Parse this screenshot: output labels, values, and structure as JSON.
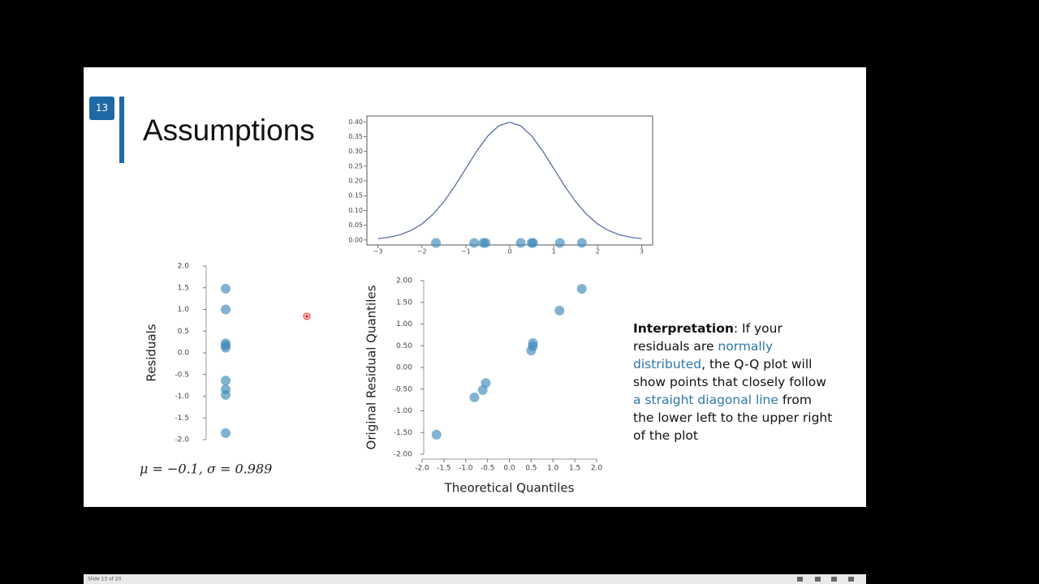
{
  "slide_number": "13",
  "title": "Assumptions",
  "status": "Slide 13 of 20",
  "annotation": "μ = −0.1, σ = 0.989",
  "interpretation": [
    {
      "text": "Interpretation",
      "style": "bold"
    },
    {
      "text": ": If your residuals are ",
      "style": "plain"
    },
    {
      "text": "normally distributed",
      "style": "accent"
    },
    {
      "text": ", the Q-Q plot will show points that closely follow ",
      "style": "plain"
    },
    {
      "text": "a straight diagonal line",
      "style": "accent"
    },
    {
      "text": " from the lower left to the upper right of the plot",
      "style": "plain"
    }
  ],
  "chart_data": [
    {
      "type": "line",
      "xlim": [
        -3.25,
        3.25
      ],
      "ylim": [
        -0.017,
        0.42
      ],
      "xticks": [
        {
          "value": -3,
          "label": "−3"
        },
        {
          "value": -2,
          "label": "−2"
        },
        {
          "value": -1,
          "label": "−1"
        },
        0,
        1,
        2,
        3
      ],
      "yticks": [
        {
          "value": 0,
          "label": "0.00"
        },
        {
          "value": 0.05,
          "label": "0.05"
        },
        {
          "value": 0.1,
          "label": "0.10"
        },
        {
          "value": 0.15,
          "label": "0.15"
        },
        {
          "value": 0.2,
          "label": "0.20"
        },
        {
          "value": 0.25,
          "label": "0.25"
        },
        {
          "value": 0.3,
          "label": "0.30"
        },
        {
          "value": 0.35,
          "label": "0.35"
        },
        {
          "value": 0.4,
          "label": "0.40"
        }
      ],
      "series": [
        {
          "type": "line",
          "color": "#5b6fa3",
          "x": [
            -3,
            -2.75,
            -2.5,
            -2.25,
            -2,
            -1.75,
            -1.5,
            -1.25,
            -1,
            -0.75,
            -0.5,
            -0.25,
            0,
            0.25,
            0.5,
            0.75,
            1,
            1.25,
            1.5,
            1.75,
            2,
            2.25,
            2.5,
            2.75,
            3
          ],
          "values": [
            0.0044,
            0.0091,
            0.0175,
            0.0317,
            0.054,
            0.0863,
            0.1295,
            0.1826,
            0.242,
            0.3011,
            0.3521,
            0.3867,
            0.3989,
            0.3867,
            0.3521,
            0.3011,
            0.242,
            0.1826,
            0.1295,
            0.0863,
            0.054,
            0.0317,
            0.0175,
            0.0091,
            0.0044
          ]
        },
        {
          "type": "scatter",
          "color": "#3f88b8",
          "x": [
            -1.68,
            -0.81,
            -0.6,
            -0.55,
            0.25,
            0.5,
            0.53,
            1.14,
            1.64
          ],
          "values": [
            -0.01,
            -0.01,
            -0.01,
            -0.01,
            -0.01,
            -0.01,
            -0.01,
            -0.01,
            -0.01
          ]
        }
      ]
    },
    {
      "type": "strip",
      "ylabel": "Residuals",
      "color": "#3f88b8",
      "ylim": [
        -2,
        2
      ],
      "yticks": [
        {
          "value": 2,
          "label": "2.0"
        },
        {
          "value": 1.5,
          "label": "1.5"
        },
        {
          "value": 1,
          "label": "1.0"
        },
        {
          "value": 0.5,
          "label": "0.5"
        },
        {
          "value": 0,
          "label": "0.0"
        },
        {
          "value": -0.5,
          "label": "-0.5"
        },
        {
          "value": -1,
          "label": "-1.0"
        },
        {
          "value": -1.5,
          "label": "-1.5"
        },
        {
          "value": -2,
          "label": "-2.0"
        }
      ],
      "values": [
        1.48,
        1.0,
        0.22,
        0.17,
        0.12,
        -0.64,
        -0.84,
        -0.97,
        -1.85
      ]
    },
    {
      "type": "scatter",
      "xlabel": "Theoretical Quantiles",
      "ylabel": "Original Residual Quantiles",
      "color": "#3f88b8",
      "xlim": [
        -2,
        2
      ],
      "ylim": [
        -2,
        2
      ],
      "xticks": [
        {
          "value": -2,
          "label": "-2.0"
        },
        {
          "value": -1.5,
          "label": "-1.5"
        },
        {
          "value": -1,
          "label": "-1.0"
        },
        {
          "value": -0.5,
          "label": "-0.5"
        },
        {
          "value": 0,
          "label": "0.0"
        },
        {
          "value": 0.5,
          "label": "0.5"
        },
        {
          "value": 1,
          "label": "1.0"
        },
        {
          "value": 1.5,
          "label": "1.5"
        },
        {
          "value": 2,
          "label": "2.0"
        }
      ],
      "yticks": [
        {
          "value": -2,
          "label": "-2.00"
        },
        {
          "value": -1.5,
          "label": "-1.50"
        },
        {
          "value": -1,
          "label": "-1.00"
        },
        {
          "value": -0.5,
          "label": "-0.50"
        },
        {
          "value": 0,
          "label": "0.00"
        },
        {
          "value": 0.5,
          "label": "0.50"
        },
        {
          "value": 1,
          "label": "1.00"
        },
        {
          "value": 1.5,
          "label": "1.50"
        },
        {
          "value": 2,
          "label": "2.00"
        }
      ],
      "x": [
        -1.67,
        -0.8,
        -0.61,
        -0.54,
        0.5,
        0.54,
        0.54,
        1.15,
        1.66
      ],
      "values": [
        -1.55,
        -0.69,
        -0.52,
        -0.36,
        0.39,
        0.49,
        0.56,
        1.31,
        1.81
      ]
    }
  ]
}
